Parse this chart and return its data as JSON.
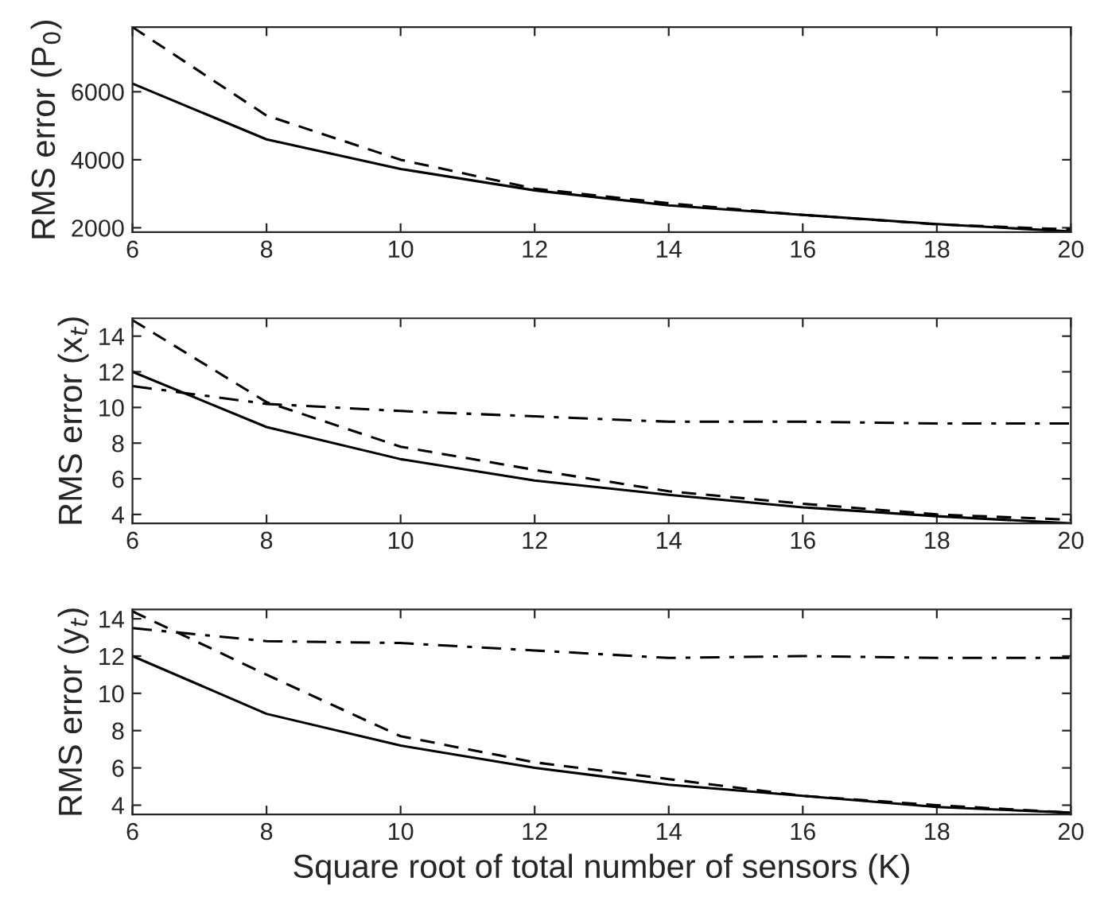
{
  "chart_data": [
    {
      "type": "line",
      "ylabel": "RMS error (P$_{0}$)",
      "x": [
        6,
        8,
        10,
        12,
        14,
        16,
        18,
        20
      ],
      "xlim": [
        6,
        20
      ],
      "xticks": [
        6,
        8,
        10,
        12,
        14,
        16,
        18,
        20
      ],
      "ylim": [
        1870,
        7900
      ],
      "yticks": [
        2000,
        4000,
        6000
      ],
      "grid": false,
      "series": [
        {
          "color": "#000000",
          "line_style": "solid",
          "values": [
            6240,
            4600,
            3730,
            3100,
            2660,
            2380,
            2110,
            1890
          ]
        },
        {
          "color": "#000000",
          "line_style": "dashed",
          "values": [
            7900,
            5300,
            4000,
            3150,
            2720,
            2380,
            2100,
            1950
          ]
        }
      ]
    },
    {
      "type": "line",
      "ylabel": "RMS error (x$_{t}$)",
      "x": [
        6,
        8,
        10,
        12,
        14,
        16,
        18,
        20
      ],
      "xlim": [
        6,
        20
      ],
      "xticks": [
        6,
        8,
        10,
        12,
        14,
        16,
        18,
        20
      ],
      "ylim": [
        3.5,
        15
      ],
      "yticks": [
        4,
        6,
        8,
        10,
        12,
        14
      ],
      "grid": false,
      "series": [
        {
          "color": "#000000",
          "line_style": "solid",
          "values": [
            12,
            8.9,
            7.1,
            5.9,
            5.1,
            4.4,
            3.9,
            3.5
          ]
        },
        {
          "color": "#000000",
          "line_style": "dashed",
          "values": [
            14.9,
            10.3,
            7.8,
            6.5,
            5.3,
            4.6,
            4.0,
            3.7
          ]
        },
        {
          "color": "#000000",
          "line_style": "dashdot",
          "values": [
            11.2,
            10.2,
            9.8,
            9.5,
            9.2,
            9.2,
            9.1,
            9.1
          ]
        }
      ]
    },
    {
      "type": "line",
      "ylabel": "RMS error (y$_{t}$)",
      "xlabel": "Square root of total number of sensors (K)",
      "x": [
        6,
        8,
        10,
        12,
        14,
        16,
        18,
        20
      ],
      "xlim": [
        6,
        20
      ],
      "xticks": [
        6,
        8,
        10,
        12,
        14,
        16,
        18,
        20
      ],
      "ylim": [
        3.5,
        14.5
      ],
      "yticks": [
        4,
        6,
        8,
        10,
        12,
        14
      ],
      "grid": false,
      "series": [
        {
          "color": "#000000",
          "line_style": "solid",
          "values": [
            12,
            8.9,
            7.2,
            6.0,
            5.1,
            4.5,
            3.9,
            3.6
          ]
        },
        {
          "color": "#000000",
          "line_style": "dashed",
          "values": [
            14.4,
            11.0,
            7.7,
            6.3,
            5.4,
            4.5,
            4.0,
            3.6
          ]
        },
        {
          "color": "#000000",
          "line_style": "dashdot",
          "values": [
            13.5,
            12.8,
            12.7,
            12.3,
            11.9,
            12.0,
            11.9,
            11.9
          ]
        }
      ]
    }
  ]
}
